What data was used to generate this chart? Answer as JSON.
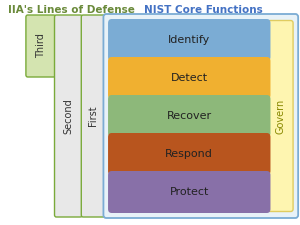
{
  "title_left": "IIA's Lines of Defense",
  "title_right": "NIST Core Functions",
  "title_left_color": "#6a8a3a",
  "title_right_color": "#4472c4",
  "lines_of_defense": [
    "Third",
    "Second",
    "First"
  ],
  "nist_functions": [
    "Identify",
    "Detect",
    "Recover",
    "Respond",
    "Protect"
  ],
  "nist_colors": [
    "#7bacd4",
    "#f0b030",
    "#8db87a",
    "#b8551e",
    "#8870a8"
  ],
  "govern_label": "Govern",
  "govern_color": "#fef5b0",
  "govern_border": "#e0cc60",
  "outer_box_edge": "#7bacd4",
  "outer_box_face": "#e8f2f8",
  "lines_box_edge": "#7aaa3a",
  "third_box_face": "#d4e4b0",
  "second_box_face": "#e8e8e8",
  "first_box_face": "#e8e8e8",
  "bg_color": "#ffffff",
  "title_fontsize": 7.5,
  "label_fontsize": 8.0,
  "lines_fontsize": 7.0
}
